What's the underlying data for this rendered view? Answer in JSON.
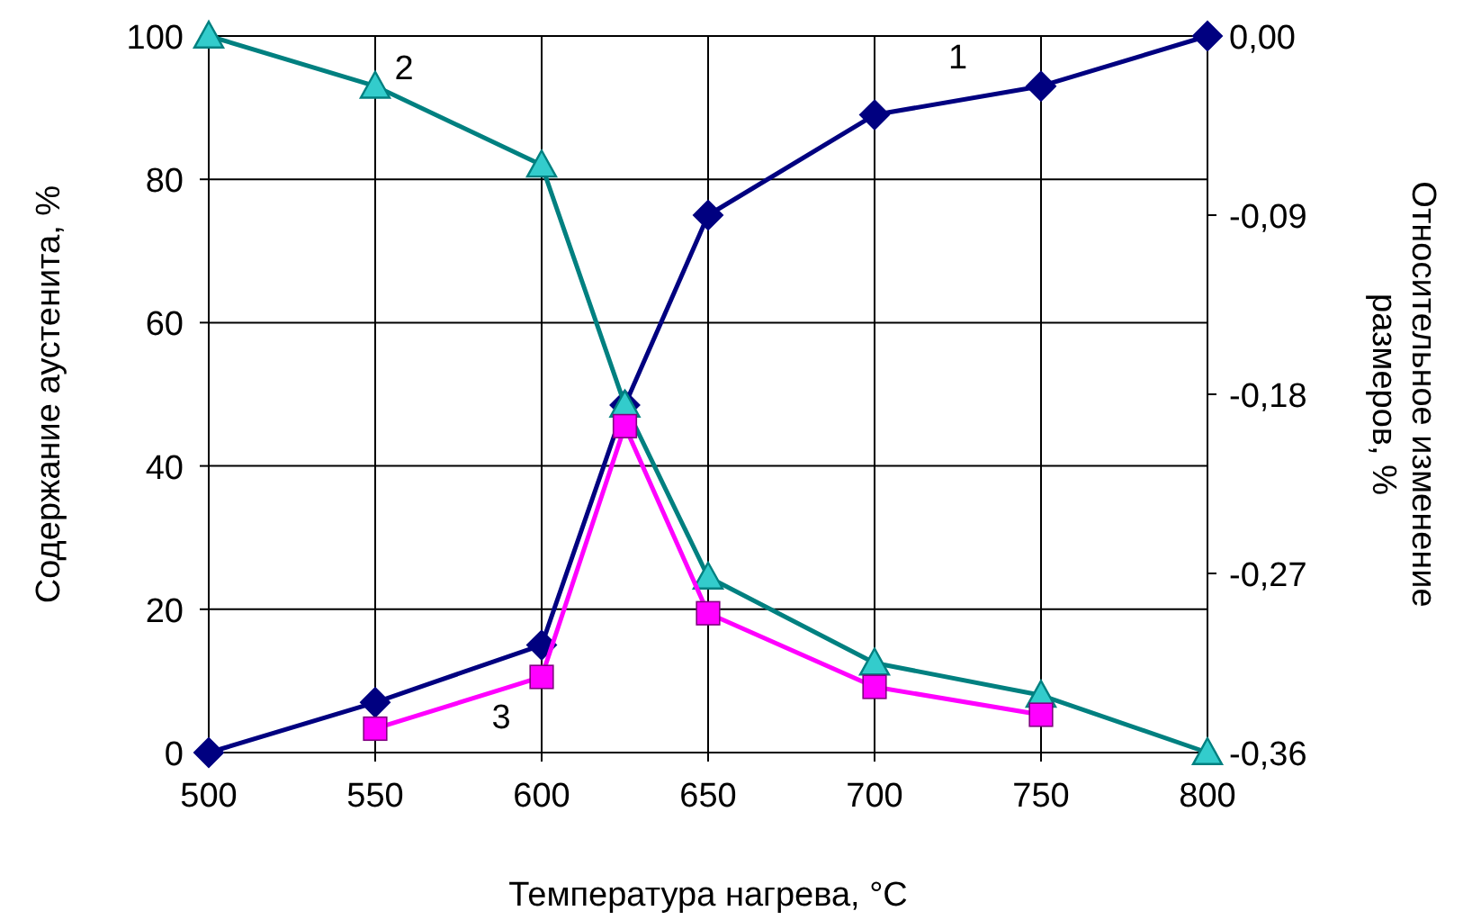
{
  "chart_data": {
    "type": "line",
    "xlabel": "Температура нагрева, °C",
    "ylabel": "Содержание аустенита, %",
    "y2label": "Относительное изменение размеров, %",
    "xlim": [
      500,
      800
    ],
    "xticks": [
      500,
      550,
      600,
      650,
      700,
      750,
      800
    ],
    "ylim": [
      0,
      100
    ],
    "yticks": [
      0,
      20,
      40,
      60,
      80,
      100
    ],
    "y2lim": [
      -0.36,
      0
    ],
    "y2ticks": [
      {
        "value": -0.36,
        "label": "-0,36"
      },
      {
        "value": -0.27,
        "label": "-0,27"
      },
      {
        "value": -0.18,
        "label": "-0,18"
      },
      {
        "value": -0.09,
        "label": "-0,09"
      },
      {
        "value": 0,
        "label": "0,00"
      }
    ],
    "grid": true,
    "series": [
      {
        "name": "1",
        "color": "#000080",
        "marker": "diamond",
        "x": [
          500,
          550,
          600,
          625,
          650,
          700,
          750,
          800
        ],
        "values": [
          0,
          7,
          15,
          48.5,
          75,
          89,
          93,
          100
        ]
      },
      {
        "name": "2",
        "color": "#008080",
        "marker": "triangle",
        "x": [
          500,
          550,
          600,
          625,
          650,
          700,
          750,
          800
        ],
        "values": [
          100,
          93,
          82,
          48.5,
          24.5,
          12.5,
          8,
          0
        ]
      },
      {
        "name": "3",
        "color": "#ff00ff",
        "marker": "square",
        "axis": "y2",
        "x": [
          550,
          600,
          625,
          650,
          700,
          750
        ],
        "values": [
          -0.348,
          -0.322,
          -0.196,
          -0.29,
          -0.327,
          -0.341
        ]
      }
    ]
  }
}
